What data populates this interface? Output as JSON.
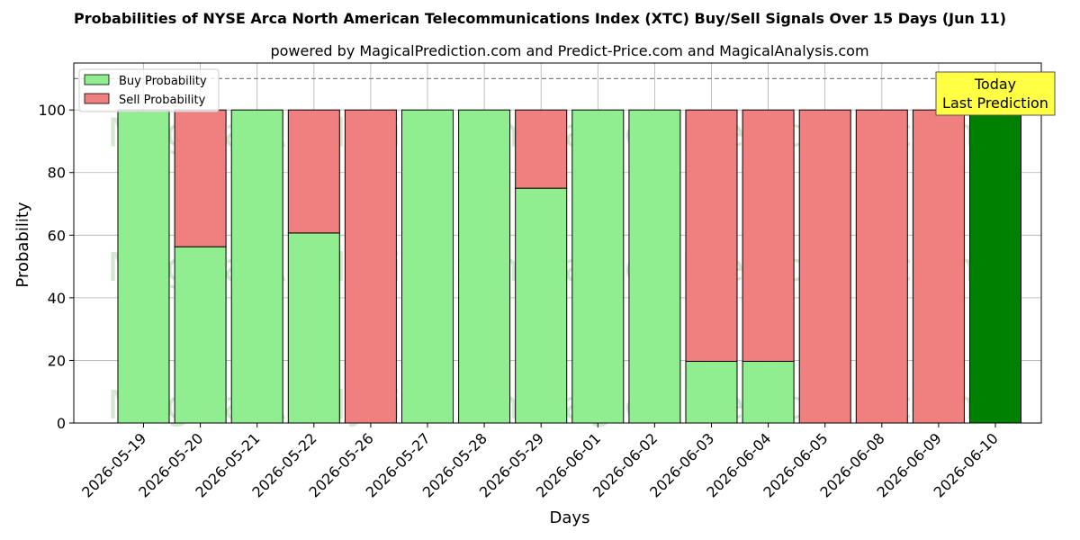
{
  "chart_data": {
    "type": "bar",
    "stacked": true,
    "title": "Probabilities of NYSE Arca North American Telecommunications Index (XTC) Buy/Sell Signals Over 15 Days (Jun 11)",
    "subtitle": "powered by MagicalPrediction.com and Predict-Price.com and MagicalAnalysis.com",
    "xlabel": "Days",
    "ylabel": "Probability",
    "ylim": [
      0,
      115
    ],
    "yticks": [
      0,
      20,
      40,
      60,
      80,
      100
    ],
    "grid": true,
    "legend_position": "top-left",
    "reference_line": 110,
    "categories": [
      "2026-05-19",
      "2026-05-20",
      "2026-05-21",
      "2026-05-22",
      "2026-05-26",
      "2026-05-27",
      "2026-05-28",
      "2026-05-29",
      "2026-06-01",
      "2026-06-02",
      "2026-06-03",
      "2026-06-04",
      "2026-06-05",
      "2026-06-08",
      "2026-06-09",
      "2026-06-10"
    ],
    "series": [
      {
        "name": "Buy Probability",
        "color": "#90ee90",
        "values": [
          100,
          56.3,
          100,
          60.7,
          0,
          100,
          100,
          75,
          100,
          100,
          19.7,
          19.7,
          0,
          0,
          0,
          100
        ]
      },
      {
        "name": "Sell Probability",
        "color": "#f08080",
        "values": [
          0,
          43.7,
          0,
          39.3,
          100,
          0,
          0,
          25,
          0,
          0,
          80.3,
          80.3,
          100,
          100,
          100,
          0
        ]
      }
    ],
    "highlight": {
      "index": 15,
      "color": "#008000"
    },
    "annotation": {
      "line1": "Today",
      "line2": "Last Prediction",
      "background": "#ffff44"
    },
    "watermarks": [
      "MagicalAnalysis.com",
      "MagicalPrediction.com"
    ]
  }
}
